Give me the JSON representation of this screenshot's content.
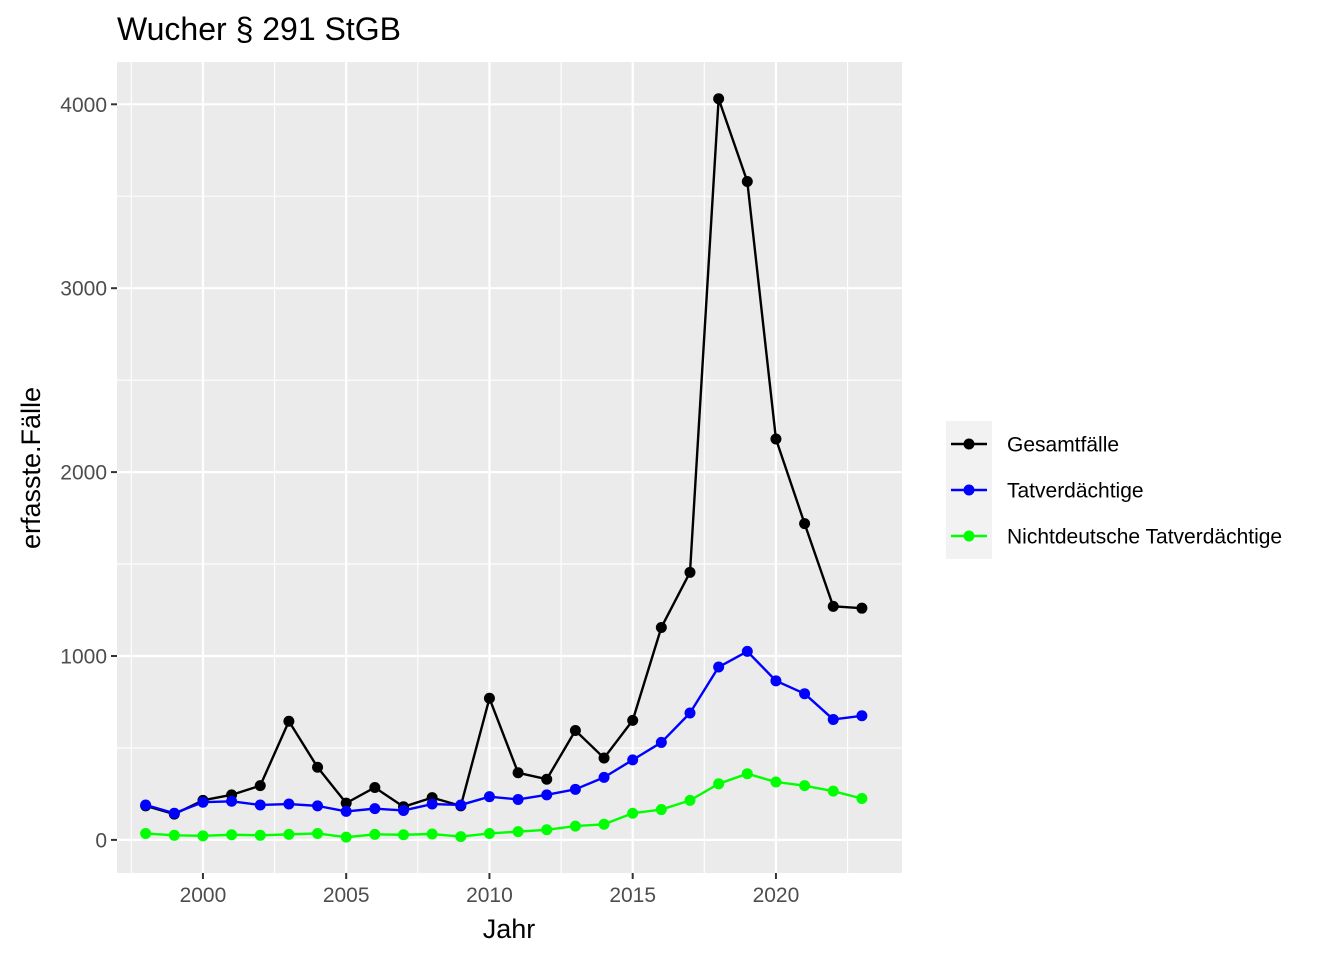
{
  "chart_data": {
    "type": "line",
    "title": "Wucher § 291 StGB",
    "xlabel": "Jahr",
    "ylabel": "erfasste.Fälle",
    "xlim": [
      1997,
      2024.4
    ],
    "ylim": [
      -180,
      4230
    ],
    "x_ticks": [
      2000,
      2005,
      2010,
      2015,
      2020
    ],
    "y_ticks": [
      0,
      1000,
      2000,
      3000,
      4000
    ],
    "x_tick_labels": [
      "2000",
      "2005",
      "2010",
      "2015",
      "2020"
    ],
    "y_tick_labels": [
      "0",
      "1000",
      "2000",
      "3000",
      "4000"
    ],
    "grid": true,
    "legend_position": "right",
    "x": [
      1998,
      1999,
      2000,
      2001,
      2002,
      2003,
      2004,
      2005,
      2006,
      2007,
      2008,
      2009,
      2010,
      2011,
      2012,
      2013,
      2014,
      2015,
      2016,
      2017,
      2018,
      2019,
      2020,
      2021,
      2022,
      2023
    ],
    "series": [
      {
        "name": "Gesamtfälle",
        "color": "#000000",
        "values": [
          185,
          140,
          215,
          245,
          295,
          645,
          395,
          200,
          285,
          180,
          230,
          185,
          770,
          365,
          330,
          595,
          445,
          650,
          1155,
          1455,
          4030,
          3580,
          2180,
          1720,
          1270,
          1260
        ]
      },
      {
        "name": "Tatverdächtige",
        "color": "#0000ff",
        "values": [
          190,
          145,
          205,
          210,
          190,
          195,
          185,
          155,
          170,
          160,
          195,
          190,
          235,
          220,
          245,
          275,
          340,
          435,
          530,
          690,
          940,
          1025,
          865,
          795,
          655,
          675
        ]
      },
      {
        "name": "Nichtdeutsche Tatverdächtige",
        "color": "#00ff00",
        "values": [
          35,
          25,
          22,
          28,
          25,
          30,
          35,
          15,
          30,
          28,
          32,
          18,
          35,
          45,
          55,
          75,
          85,
          145,
          165,
          215,
          305,
          360,
          315,
          295,
          265,
          225
        ]
      }
    ]
  }
}
